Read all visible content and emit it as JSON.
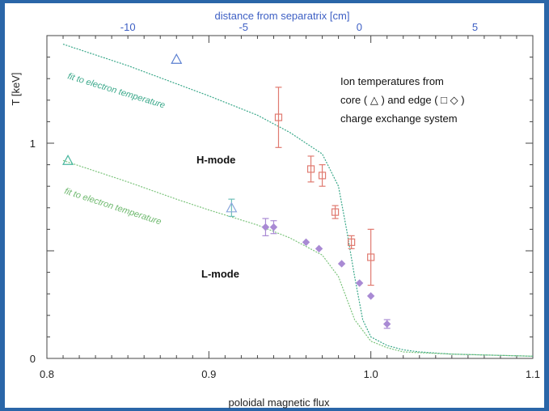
{
  "chart_data": {
    "type": "scatter",
    "xlabel": "poloidal magnetic flux",
    "ylabel": "T  [keV]",
    "top_xlabel": "distance from separatrix [cm]",
    "xlim": [
      0.8,
      1.1
    ],
    "ylim": [
      0,
      1.5
    ],
    "top_xlim": [
      -13.5,
      7.5
    ],
    "x_ticks": [
      "0.8",
      "0.9",
      "1.0",
      "1.1"
    ],
    "y_ticks": [
      "0",
      "1"
    ],
    "top_ticks": [
      "-10",
      "-5",
      "0",
      "5"
    ],
    "legend_lines": [
      "Ion temperatures from",
      "core ( △ ) and edge ( □ ◇ )",
      "charge exchange system"
    ],
    "annotations": {
      "h_mode": "H-mode",
      "l_mode": "L-mode",
      "fit_h": "fit to electron temperature",
      "fit_l": "fit to electron temperature"
    },
    "colors": {
      "frame": "#2a66a8",
      "top_axis": "#3d5fc4",
      "h_fit": "#3aa88a",
      "l_fit": "#7cc47c",
      "h_edge": "#e07a70",
      "l_edge": "#a98ad4",
      "core_triangle": "#5a7fd0"
    },
    "series": [
      {
        "name": "H-mode fit to electron temperature",
        "kind": "line",
        "x": [
          0.81,
          0.85,
          0.9,
          0.93,
          0.95,
          0.97,
          0.98,
          0.985,
          0.99,
          0.995,
          1.0,
          1.01,
          1.02,
          1.03,
          1.05,
          1.1
        ],
        "y": [
          1.46,
          1.36,
          1.22,
          1.13,
          1.05,
          0.95,
          0.8,
          0.6,
          0.38,
          0.18,
          0.1,
          0.06,
          0.04,
          0.03,
          0.02,
          0.01
        ]
      },
      {
        "name": "L-mode fit to electron temperature",
        "kind": "line",
        "x": [
          0.81,
          0.85,
          0.88,
          0.9,
          0.93,
          0.95,
          0.97,
          0.98,
          0.99,
          1.0,
          1.01,
          1.02,
          1.05,
          1.1
        ],
        "y": [
          0.92,
          0.82,
          0.74,
          0.69,
          0.62,
          0.56,
          0.48,
          0.38,
          0.18,
          0.08,
          0.05,
          0.03,
          0.02,
          0.01
        ]
      },
      {
        "name": "H-mode core",
        "marker": "triangle",
        "points": [
          {
            "x": 0.88,
            "y": 1.39
          }
        ]
      },
      {
        "name": "H-mode edge",
        "marker": "square",
        "points": [
          {
            "x": 0.943,
            "y": 1.12,
            "err": 0.14
          },
          {
            "x": 0.963,
            "y": 0.88,
            "err": 0.06
          },
          {
            "x": 0.97,
            "y": 0.85,
            "err": 0.05
          },
          {
            "x": 0.978,
            "y": 0.68,
            "err": 0.03
          },
          {
            "x": 0.988,
            "y": 0.54,
            "err": 0.03
          },
          {
            "x": 1.0,
            "y": 0.47,
            "err": 0.13
          }
        ]
      },
      {
        "name": "L-mode core",
        "marker": "triangle",
        "points": [
          {
            "x": 0.813,
            "y": 0.92
          },
          {
            "x": 0.914,
            "y": 0.7,
            "err": 0.04
          }
        ]
      },
      {
        "name": "L-mode edge",
        "marker": "diamond",
        "points": [
          {
            "x": 0.935,
            "y": 0.61,
            "err": 0.04
          },
          {
            "x": 0.94,
            "y": 0.61,
            "err": 0.03
          },
          {
            "x": 0.96,
            "y": 0.54
          },
          {
            "x": 0.968,
            "y": 0.51
          },
          {
            "x": 0.982,
            "y": 0.44
          },
          {
            "x": 0.993,
            "y": 0.35
          },
          {
            "x": 1.0,
            "y": 0.29
          },
          {
            "x": 1.01,
            "y": 0.16,
            "err": 0.02
          }
        ]
      }
    ]
  }
}
